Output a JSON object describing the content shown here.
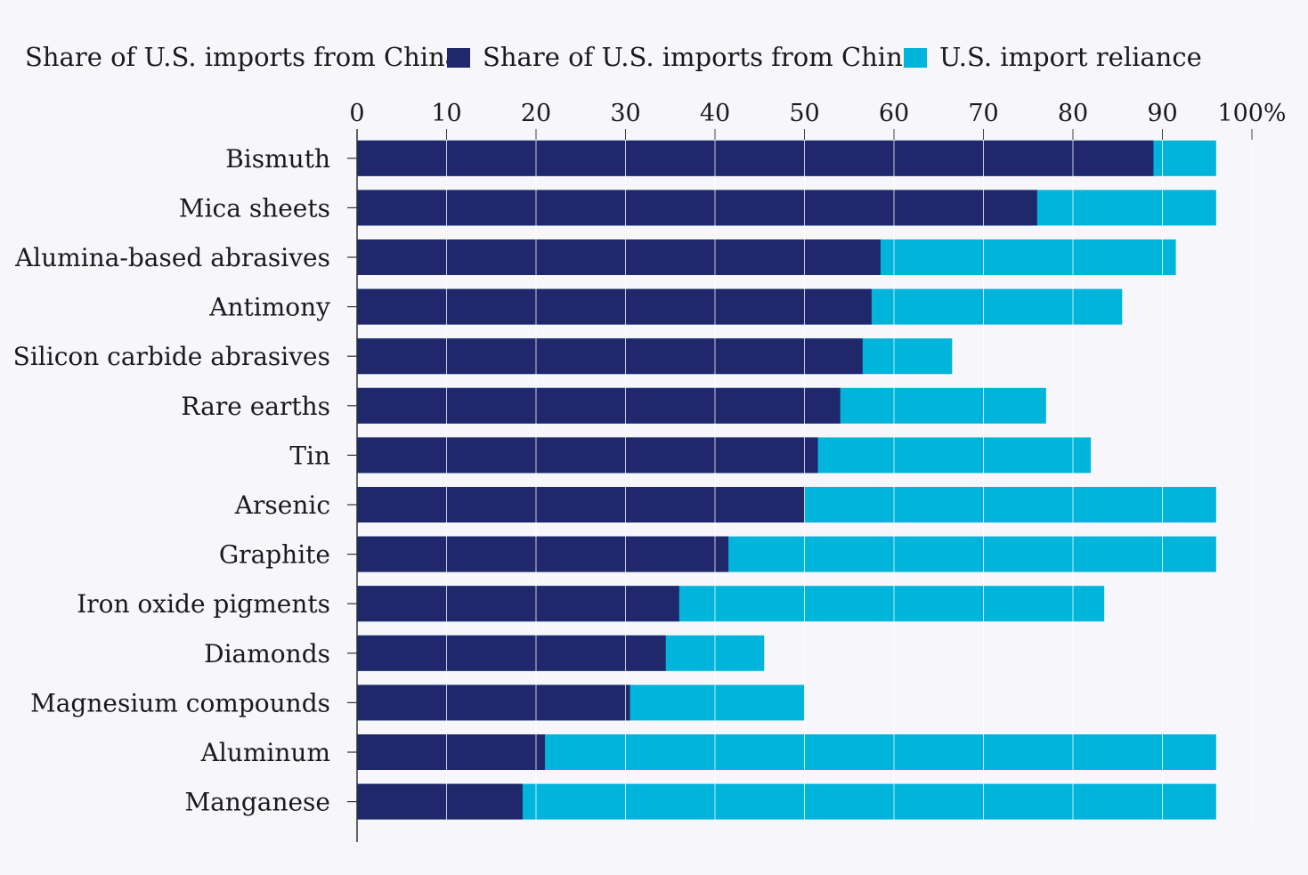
{
  "chart_data": {
    "type": "bar",
    "orientation": "horizontal",
    "stacked": false,
    "overlay": true,
    "title": "",
    "legend_title": "Share of U.S. imports from China",
    "legend_position": "top-left",
    "axis_position": "top",
    "xlabel": "",
    "ylabel": "",
    "xlim": [
      0,
      100
    ],
    "x_ticks": [
      0,
      10,
      20,
      30,
      40,
      50,
      60,
      70,
      80,
      90,
      100
    ],
    "x_tick_labels": [
      "0",
      "10",
      "20",
      "30",
      "40",
      "50",
      "60",
      "70",
      "80",
      "90",
      "100%"
    ],
    "grid": true,
    "categories": [
      "Bismuth",
      "Mica sheets",
      "Alumina-based abrasives",
      "Antimony",
      "Silicon carbide abrasives",
      "Rare earths",
      "Tin",
      "Arsenic",
      "Graphite",
      "Iron oxide pigments",
      "Diamonds",
      "Magnesium compounds",
      "Aluminum",
      "Manganese"
    ],
    "series": [
      {
        "name": "U.S. import reliance",
        "color": "#00b4dc",
        "values": [
          96,
          96,
          91.5,
          85.5,
          66.5,
          77,
          82,
          96,
          96,
          83.5,
          45.5,
          50,
          96,
          96
        ]
      },
      {
        "name": "Share of U.S. imports from China",
        "color": "#20286b",
        "values": [
          89,
          76,
          58.5,
          57.5,
          56.5,
          54,
          51.5,
          50,
          41.5,
          36,
          34.5,
          30.5,
          21,
          18.5
        ]
      }
    ]
  }
}
